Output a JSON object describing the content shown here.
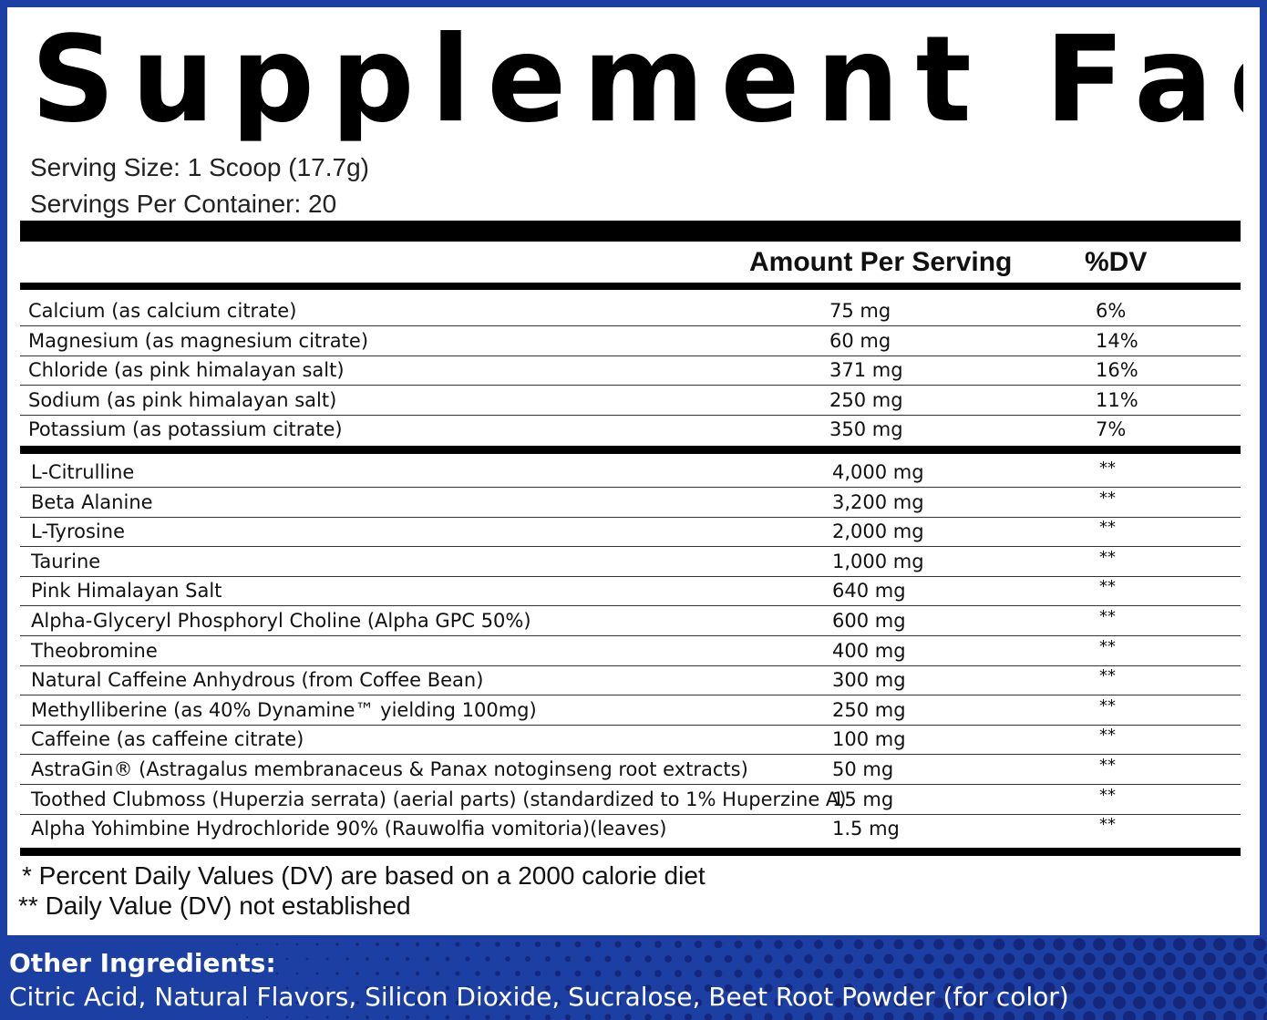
{
  "title": "Supplement Facts",
  "serving_size": "Serving Size: 1 Scoop (17.7g)",
  "servings_per_container": "Servings Per Container: 20",
  "columns": {
    "amount": "Amount Per Serving",
    "dv": "%DV"
  },
  "minerals": [
    {
      "name": "Calcium (as calcium citrate)",
      "amount": "75 mg",
      "dv": "6%"
    },
    {
      "name": "Magnesium (as magnesium citrate)",
      "amount": "60 mg",
      "dv": "14%"
    },
    {
      "name": "Chloride (as pink himalayan salt)",
      "amount": "371 mg",
      "dv": "16%"
    },
    {
      "name": "Sodium (as pink himalayan salt)",
      "amount": "250 mg",
      "dv": "11%"
    },
    {
      "name": "Potassium (as potassium citrate)",
      "amount": "350 mg",
      "dv": "7%"
    }
  ],
  "ingredients": [
    {
      "name": "L-Citrulline",
      "amount": "4,000 mg",
      "dv": "**"
    },
    {
      "name": "Beta Alanine",
      "amount": "3,200 mg",
      "dv": "**"
    },
    {
      "name": "L-Tyrosine",
      "amount": "2,000 mg",
      "dv": "**"
    },
    {
      "name": "Taurine",
      "amount": "1,000 mg",
      "dv": "**"
    },
    {
      "name": "Pink Himalayan Salt",
      "amount": "640 mg",
      "dv": "**"
    },
    {
      "name": "Alpha-Glyceryl Phosphoryl Choline (Alpha GPC 50%)",
      "amount": "600 mg",
      "dv": "**"
    },
    {
      "name": "Theobromine",
      "amount": "400 mg",
      "dv": "**"
    },
    {
      "name": "Natural Caffeine Anhydrous (from Coffee Bean)",
      "amount": "300 mg",
      "dv": "**"
    },
    {
      "name": "Methylliberine (as 40% Dynamine™ yielding 100mg)",
      "amount": "250 mg",
      "dv": "**"
    },
    {
      "name": "Caffeine (as caffeine citrate)",
      "amount": "100 mg",
      "dv": "**"
    },
    {
      "name": "AstraGin® (Astragalus membranaceus & Panax notoginseng root extracts)",
      "amount": "50 mg",
      "dv": "**"
    },
    {
      "name": "Toothed Clubmoss (Huperzia serrata) (aerial parts) (standardized to 1% Huperzine A)",
      "amount": "15 mg",
      "dv": "**"
    },
    {
      "name": "Alpha Yohimbine Hydrochloride 90% (Rauwolfia vomitoria)(leaves)",
      "amount": "1.5 mg",
      "dv": "**"
    }
  ],
  "footnotes": {
    "dv_basis": "* Percent Daily Values (DV) are based on a 2000 calorie diet",
    "not_established": "** Daily Value (DV) not established"
  },
  "other_ingredients": {
    "heading": "Other Ingredients:",
    "text": "Citric Acid, Natural Flavors, Silicon Dioxide, Sucralose, Beet Root Powder (for color)"
  },
  "colors": {
    "background_blue": "#1c3fa3",
    "dot_blue": "#14277a",
    "panel": "#ffffff",
    "ink": "#000000"
  }
}
